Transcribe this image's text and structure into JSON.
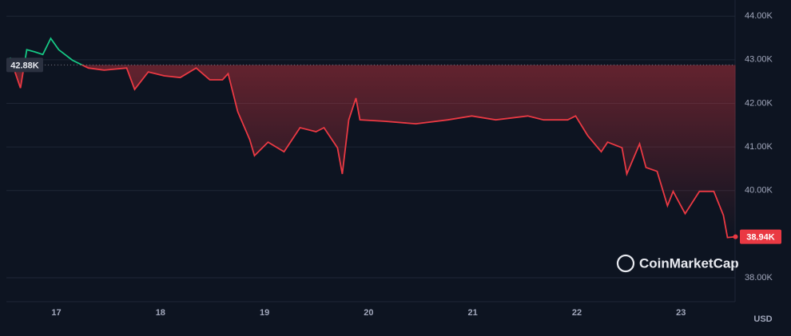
{
  "chart_data": {
    "type": "line",
    "x": [
      16.555,
      16.655,
      16.716,
      16.793,
      16.87,
      16.946,
      17.023,
      17.153,
      17.307,
      17.46,
      17.675,
      17.752,
      17.883,
      18.036,
      18.19,
      18.343,
      18.474,
      18.596,
      18.65,
      18.742,
      18.857,
      18.903,
      19.034,
      19.187,
      19.341,
      19.494,
      19.571,
      19.701,
      19.747,
      19.809,
      19.878,
      19.916,
      20.147,
      20.454,
      20.761,
      20.991,
      21.221,
      21.528,
      21.681,
      21.912,
      21.988,
      22.104,
      22.234,
      22.296,
      22.434,
      22.48,
      22.603,
      22.664,
      22.771,
      22.871,
      22.925,
      23.04,
      23.178,
      23.316,
      23.408,
      23.447,
      23.524
    ],
    "series": [
      {
        "values": [
          43.05,
          42.35,
          43.23,
          43.18,
          43.12,
          43.49,
          43.23,
          42.99,
          42.81,
          42.76,
          42.81,
          42.32,
          42.72,
          42.63,
          42.59,
          42.81,
          42.54,
          42.54,
          42.68,
          41.81,
          41.17,
          40.8,
          41.11,
          40.89,
          41.44,
          41.35,
          41.44,
          40.98,
          40.38,
          41.62,
          42.12,
          41.62,
          41.59,
          41.53,
          41.62,
          41.71,
          41.62,
          41.71,
          41.62,
          41.62,
          41.71,
          41.26,
          40.89,
          41.11,
          40.98,
          40.38,
          41.07,
          40.53,
          40.44,
          39.65,
          39.98,
          39.47,
          39.98,
          39.98,
          39.43,
          38.92,
          38.94
        ],
        "color_up": "#16c784",
        "color_down": "#ea3943"
      }
    ],
    "xlim": [
      16.52,
      23.52
    ],
    "xticks": [
      17,
      18,
      19,
      20,
      21,
      22,
      23
    ],
    "ylim": [
      37.45,
      44.37
    ],
    "yticks": [
      {
        "value": 38,
        "label": "38.00K"
      },
      {
        "value": 40,
        "label": "40.00K"
      },
      {
        "value": 41,
        "label": "41.00K"
      },
      {
        "value": 42,
        "label": "42.00K"
      },
      {
        "value": 43,
        "label": "43.00K"
      },
      {
        "value": 44,
        "label": "44.00K"
      }
    ],
    "reference": {
      "value": 42.88,
      "label": "42.88K"
    },
    "last_price": {
      "value": 38.94,
      "label": "38.94K"
    },
    "unit": "USD",
    "brand": "CoinMarketCap",
    "grid": true
  }
}
